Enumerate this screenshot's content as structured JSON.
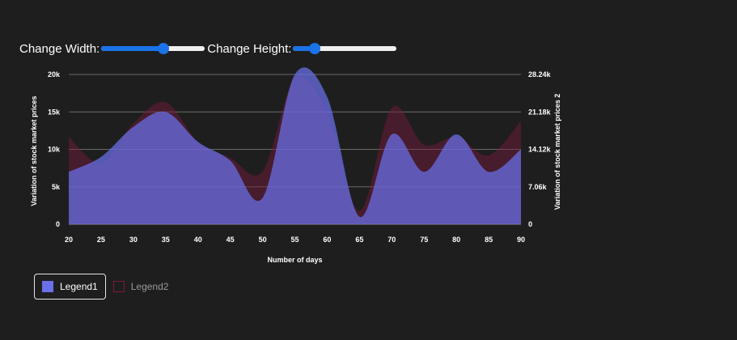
{
  "controls": {
    "width_label": "Change Width:",
    "width_value": 0.61,
    "height_label": "Change Height:",
    "height_value": 0.17
  },
  "colors": {
    "background": "#1e1e1e",
    "series1": "#6a70ea",
    "series2": "#7a1b3e",
    "slider_accent": "#1a73e8",
    "grid": "#6a6a6a"
  },
  "legend": {
    "items": [
      "Legend1",
      "Legend2"
    ],
    "active": [
      true,
      false
    ]
  },
  "chart_data": {
    "type": "area",
    "x": [
      20,
      25,
      30,
      35,
      40,
      45,
      50,
      55,
      60,
      65,
      70,
      75,
      80,
      85,
      90
    ],
    "series": [
      {
        "name": "Legend1",
        "values": [
          7000,
          9000,
          13000,
          15000,
          11000,
          8500,
          3500,
          20000,
          17000,
          1000,
          12000,
          7000,
          12000,
          7000,
          10000
        ]
      },
      {
        "name": "Legend2",
        "values": [
          16500,
          11500,
          19000,
          23000,
          15500,
          12500,
          10000,
          27500,
          21000,
          2500,
          22000,
          15000,
          16500,
          13000,
          19500
        ]
      }
    ],
    "xlabel": "Number of days",
    "ylabel": "Variation of stock market prices",
    "y2label": "Variation of stock market prices 2",
    "xticks": [
      "20",
      "25",
      "30",
      "35",
      "40",
      "45",
      "50",
      "55",
      "60",
      "65",
      "70",
      "75",
      "80",
      "85",
      "90"
    ],
    "yticks": [
      "0",
      "5k",
      "10k",
      "15k",
      "20k"
    ],
    "y2ticks": [
      "0",
      "7.06k",
      "14.12k",
      "21.18k",
      "28.24k"
    ],
    "xlim": [
      20,
      90
    ],
    "ylim": [
      0,
      20000
    ],
    "y2lim": [
      0,
      28240
    ],
    "grid": true,
    "legend_position": "bottom-left"
  }
}
